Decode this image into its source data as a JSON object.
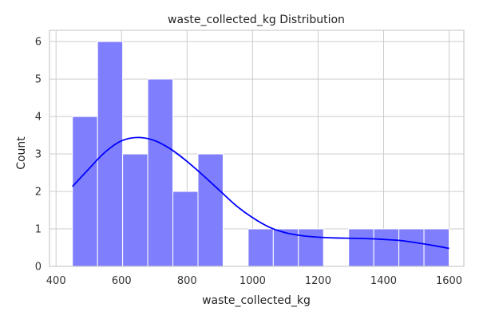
{
  "chart_data": {
    "type": "bar",
    "title": "waste_collected_kg Distribution",
    "xlabel": "waste_collected_kg",
    "ylabel": "Count",
    "xlim": [
      380,
      1645
    ],
    "ylim": [
      0,
      6.3
    ],
    "xticks": [
      400,
      600,
      800,
      1000,
      1200,
      1400,
      1600
    ],
    "yticks": [
      0,
      1,
      2,
      3,
      4,
      5,
      6
    ],
    "grid": true,
    "bin_edges": [
      450,
      526.7,
      603.3,
      680,
      756.7,
      833.3,
      910,
      986.7,
      1063.3,
      1140,
      1216.7,
      1293.3,
      1370,
      1446.7,
      1523.3,
      1600
    ],
    "counts": [
      4,
      6,
      3,
      5,
      2,
      3,
      0,
      1,
      1,
      1,
      0,
      1,
      1,
      1,
      1
    ],
    "kde": {
      "x": [
        450,
        500,
        550,
        600,
        650,
        700,
        750,
        800,
        850,
        900,
        950,
        1000,
        1050,
        1100,
        1150,
        1200,
        1250,
        1300,
        1350,
        1400,
        1450,
        1500,
        1550,
        1600
      ],
      "y": [
        2.13,
        2.6,
        3.05,
        3.35,
        3.44,
        3.36,
        3.13,
        2.8,
        2.42,
        2.02,
        1.62,
        1.3,
        1.05,
        0.9,
        0.82,
        0.78,
        0.76,
        0.75,
        0.74,
        0.72,
        0.69,
        0.63,
        0.56,
        0.48
      ]
    },
    "colors": {
      "bar_fill": "#7f7ffe",
      "bar_edge": "#ffffff",
      "kde_line": "#0000ff",
      "grid": "#cccccc",
      "spine": "#cccccc",
      "background": "#ffffff"
    }
  }
}
